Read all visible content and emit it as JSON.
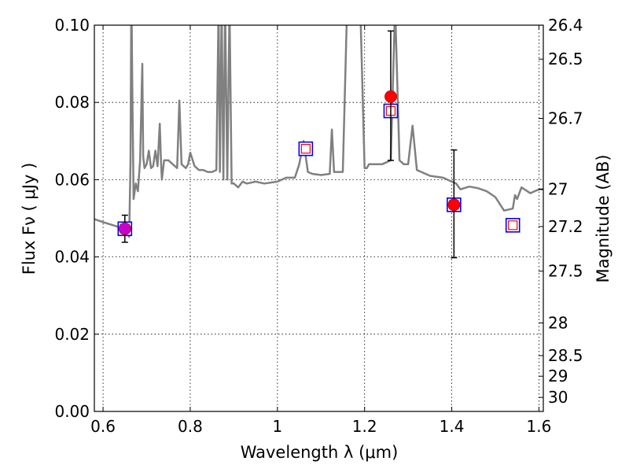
{
  "chart_data": {
    "type": "scatter",
    "xlabel": "Wavelength  λ (μm)",
    "ylabel": "Flux  Fν  ( μJy )",
    "ylabel_right": "Magnitude (AB)",
    "xlim": [
      0.58,
      1.61
    ],
    "ylim": [
      0.0,
      0.1
    ],
    "grid": true,
    "x_ticks": [
      0.6,
      0.8,
      1.0,
      1.2,
      1.4,
      1.6
    ],
    "x_tick_labels": [
      "0.6",
      "0.8",
      "1",
      "1.2",
      "1.4",
      "1.6"
    ],
    "y_ticks": [
      0.0,
      0.02,
      0.04,
      0.06,
      0.08,
      0.1
    ],
    "y_tick_labels": [
      "0.00",
      "0.02",
      "0.04",
      "0.06",
      "0.08",
      "0.10"
    ],
    "right_ticks": [
      26.4,
      26.5,
      26.7,
      27,
      27.2,
      27.5,
      28,
      28.5,
      29,
      30
    ],
    "right_tick_labels": [
      "26.4",
      "26.5",
      "26.7",
      "27",
      "27.2",
      "27.5",
      "28",
      "28.5",
      "29",
      "30"
    ],
    "colors": {
      "spectrum": "#808080",
      "observed": "#ff0000",
      "observed_outline": "#cc0000",
      "first_point": "#cc00cc",
      "model_outer": "#0000ff",
      "model_inner": "#ff0000",
      "errorbar": "#000000"
    },
    "series": [
      {
        "kind": "model_spectrum",
        "x": [
          0.58,
          0.6,
          0.62,
          0.64,
          0.65,
          0.655,
          0.66,
          0.663,
          0.665,
          0.667,
          0.67,
          0.675,
          0.68,
          0.685,
          0.69,
          0.692,
          0.695,
          0.7,
          0.705,
          0.71,
          0.715,
          0.72,
          0.725,
          0.73,
          0.733,
          0.735,
          0.74,
          0.75,
          0.76,
          0.77,
          0.775,
          0.78,
          0.79,
          0.795,
          0.8,
          0.81,
          0.82,
          0.83,
          0.84,
          0.85,
          0.86,
          0.865,
          0.868,
          0.872,
          0.876,
          0.88,
          0.885,
          0.89,
          0.895,
          0.9,
          0.91,
          0.92,
          0.93,
          0.95,
          0.97,
          1.0,
          1.02,
          1.04,
          1.05,
          1.06,
          1.07,
          1.08,
          1.1,
          1.12,
          1.125,
          1.13,
          1.14,
          1.15,
          1.16,
          1.17,
          1.18,
          1.19,
          1.2,
          1.205,
          1.21,
          1.215,
          1.22,
          1.24,
          1.26,
          1.27,
          1.28,
          1.29,
          1.3,
          1.31,
          1.32,
          1.35,
          1.38,
          1.4,
          1.41,
          1.42,
          1.44,
          1.46,
          1.48,
          1.5,
          1.52,
          1.54,
          1.545,
          1.55,
          1.56,
          1.58,
          1.6,
          1.61
        ],
        "y": [
          0.0498,
          0.049,
          0.0483,
          0.0476,
          0.0473,
          0.046,
          0.0452,
          0.065,
          0.11,
          0.085,
          0.055,
          0.059,
          0.057,
          0.065,
          0.09,
          0.066,
          0.063,
          0.064,
          0.0675,
          0.063,
          0.0635,
          0.0675,
          0.0635,
          0.0745,
          0.0645,
          0.06,
          0.065,
          0.065,
          0.064,
          0.063,
          0.0805,
          0.064,
          0.063,
          0.064,
          0.067,
          0.0635,
          0.0625,
          0.0625,
          0.062,
          0.062,
          0.0625,
          0.105,
          0.062,
          0.105,
          0.06,
          0.105,
          0.06,
          0.105,
          0.059,
          0.059,
          0.058,
          0.0595,
          0.059,
          0.0595,
          0.059,
          0.0595,
          0.0605,
          0.0605,
          0.064,
          0.07,
          0.062,
          0.0615,
          0.0612,
          0.0615,
          0.073,
          0.062,
          0.062,
          0.062,
          0.105,
          0.105,
          0.105,
          0.105,
          0.063,
          0.063,
          0.064,
          0.064,
          0.064,
          0.064,
          0.065,
          0.105,
          0.065,
          0.064,
          0.064,
          0.074,
          0.0625,
          0.061,
          0.0605,
          0.0595,
          0.059,
          0.0575,
          0.0582,
          0.0578,
          0.057,
          0.0555,
          0.052,
          0.0525,
          0.056,
          0.055,
          0.058,
          0.0565,
          0.0575,
          0.0575
        ]
      },
      {
        "kind": "observed",
        "x": [
          0.65,
          1.26,
          1.405
        ],
        "y": [
          0.0473,
          0.0815,
          0.0535
        ],
        "yerr_low": [
          0.0035,
          0.0165,
          0.0137
        ],
        "yerr_high": [
          0.0035,
          0.017,
          0.0142
        ]
      },
      {
        "kind": "model_photometry",
        "x": [
          0.65,
          1.065,
          1.26,
          1.405,
          1.54
        ],
        "y": [
          0.0473,
          0.068,
          0.0778,
          0.0535,
          0.0482
        ]
      }
    ]
  }
}
